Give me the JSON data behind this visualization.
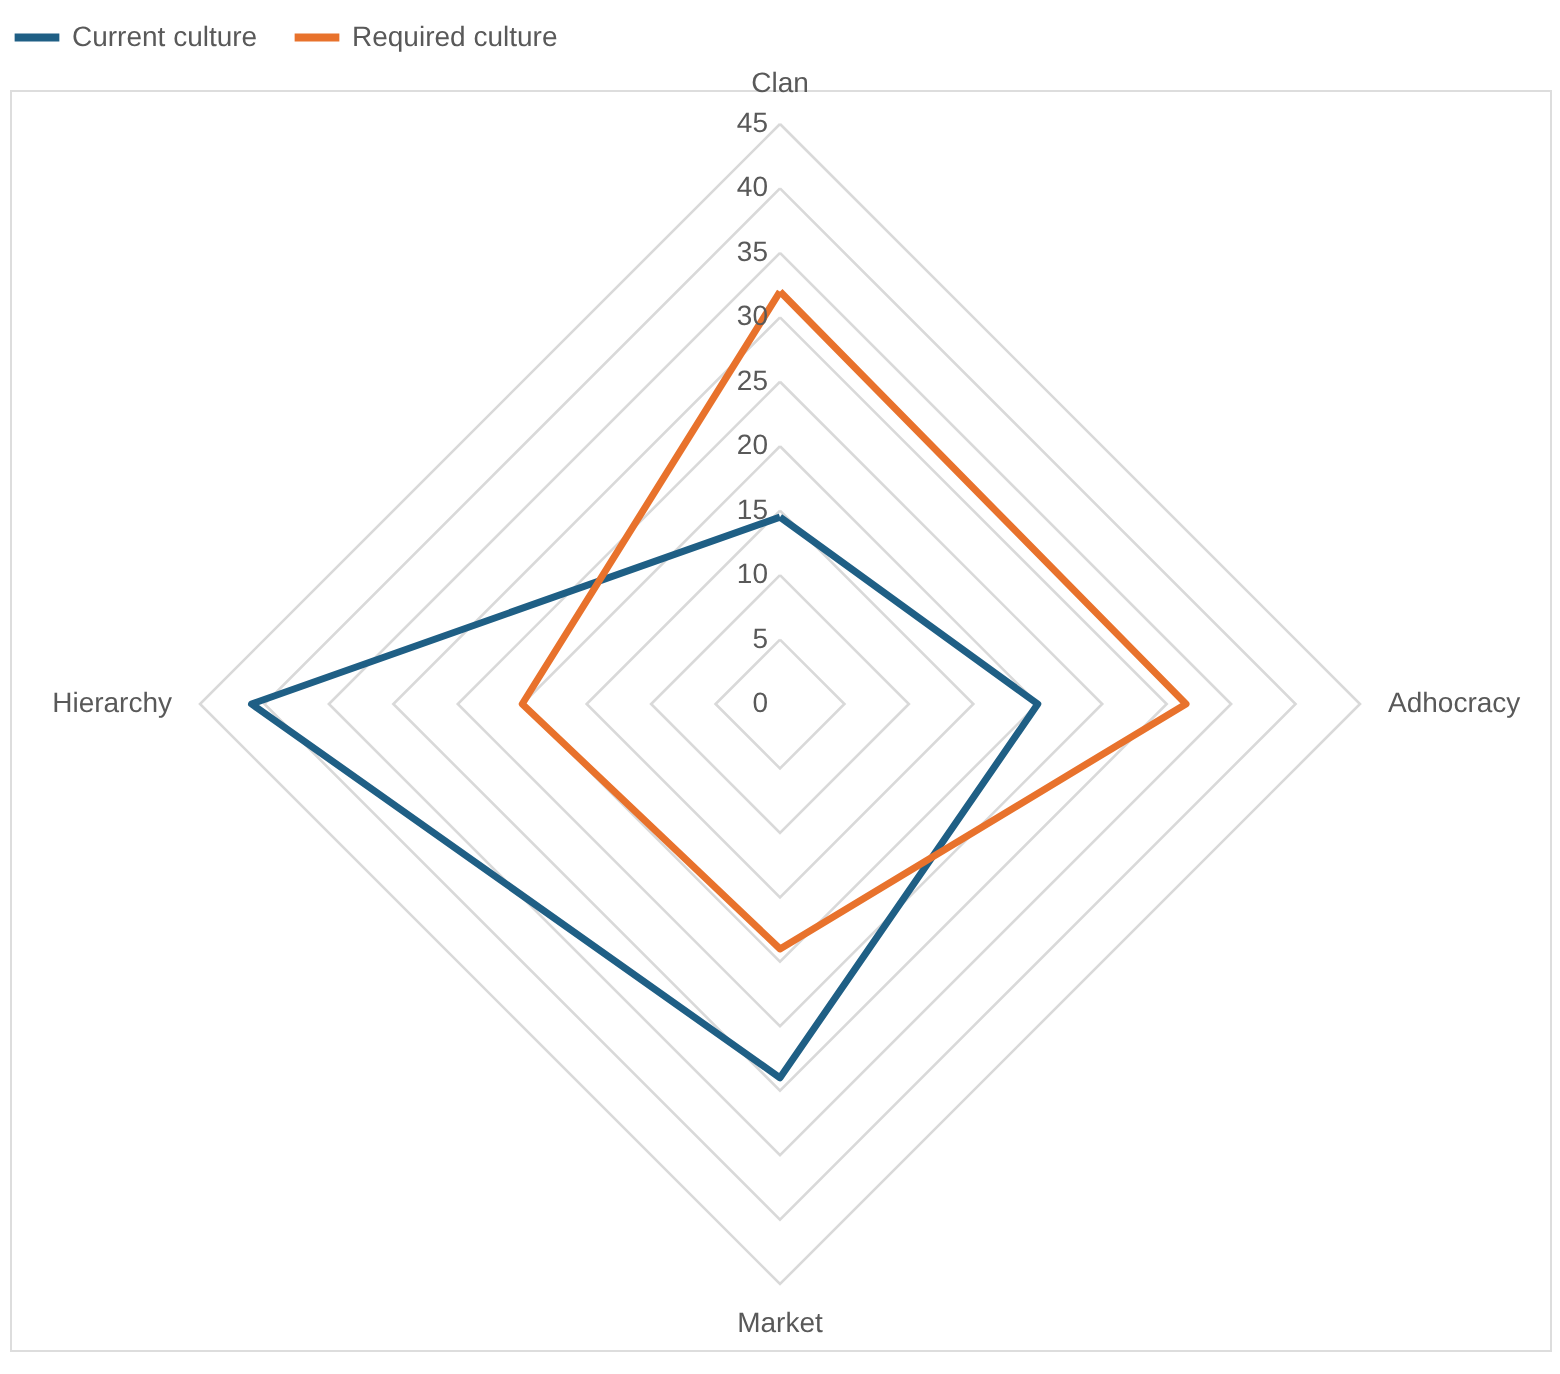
{
  "chart_data": {
    "type": "radar",
    "categories": [
      "Clan",
      "Adhocracy",
      "Market",
      "Hierarchy"
    ],
    "series": [
      {
        "name": "Current culture",
        "color": "#1f5f85",
        "values": [
          14.5,
          20,
          29,
          41
        ]
      },
      {
        "name": "Required culture",
        "color": "#e8722c",
        "values": [
          32,
          31.5,
          19,
          20
        ]
      }
    ],
    "ylim": [
      0,
      45
    ],
    "yticks": [
      0,
      5,
      10,
      15,
      20,
      25,
      30,
      35,
      40,
      45
    ],
    "grid": true,
    "legend": "top"
  }
}
